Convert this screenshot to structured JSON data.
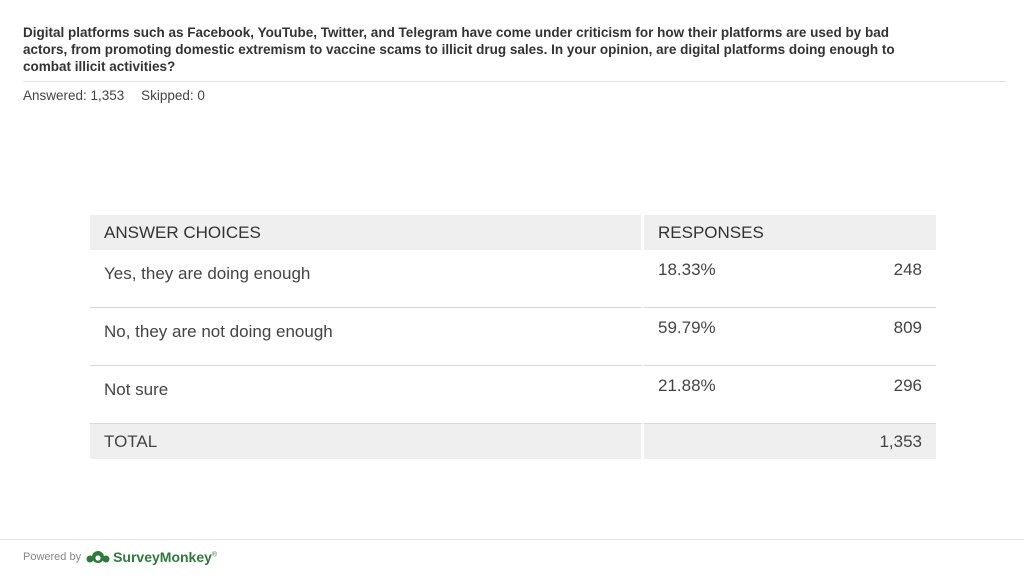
{
  "question": "Digital platforms such as Facebook, YouTube, Twitter, and Telegram have come under criticism for how their platforms are used by bad actors, from promoting domestic extremism to vaccine scams to illicit drug sales. In your opinion, are digital platforms doing enough to combat illicit activities?",
  "stats": {
    "answered": "Answered: 1,353",
    "skipped": "Skipped: 0"
  },
  "table": {
    "headers": {
      "choices": "ANSWER CHOICES",
      "responses": "RESPONSES"
    },
    "rows": [
      {
        "choice": "Yes, they are doing enough",
        "percent": "18.33%",
        "count": "248"
      },
      {
        "choice": "No, they are not doing enough",
        "percent": "59.79%",
        "count": "809"
      },
      {
        "choice": "Not sure",
        "percent": "21.88%",
        "count": "296"
      }
    ],
    "total": {
      "label": "TOTAL",
      "count": "1,353"
    }
  },
  "footer": {
    "powered_by": "Powered by",
    "brand": "SurveyMonkey",
    "registered": "®",
    "logo_icon": "surveymonkey-logo-icon"
  },
  "colors": {
    "brand_green": "#2d7a3a",
    "header_bg": "#efefef"
  }
}
